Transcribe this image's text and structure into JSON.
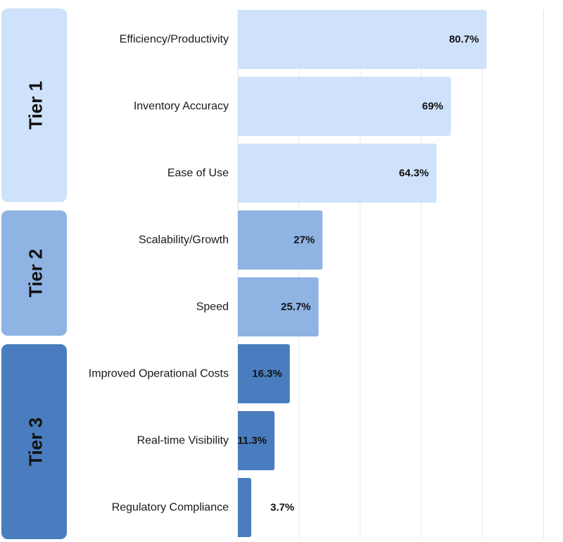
{
  "chart_data": {
    "type": "bar",
    "orientation": "horizontal",
    "categories": [
      "Efficiency/Productivity",
      "Inventory Accuracy",
      "Ease of Use",
      "Scalability/Growth",
      "Speed",
      "Improved Operational Costs",
      "Real-time Visibility",
      "Regulatory Compliance"
    ],
    "values": [
      80.7,
      69,
      64.3,
      27,
      25.7,
      16.3,
      11.3,
      3.7
    ],
    "value_labels": [
      "80.7%",
      "69%",
      "64.3%",
      "27%",
      "25.7%",
      "16.3%",
      "11.3%",
      "3.7%"
    ],
    "groups": [
      {
        "label": "Tier 1",
        "start": 0,
        "count": 3,
        "color": "#cfe2fb"
      },
      {
        "label": "Tier 2",
        "start": 3,
        "count": 2,
        "color": "#8fb3e3"
      },
      {
        "label": "Tier 3",
        "start": 5,
        "count": 3,
        "color": "#4a7dbf"
      }
    ],
    "xlim": [
      0,
      100
    ],
    "grid": true,
    "title": "",
    "xlabel": "",
    "ylabel": ""
  }
}
